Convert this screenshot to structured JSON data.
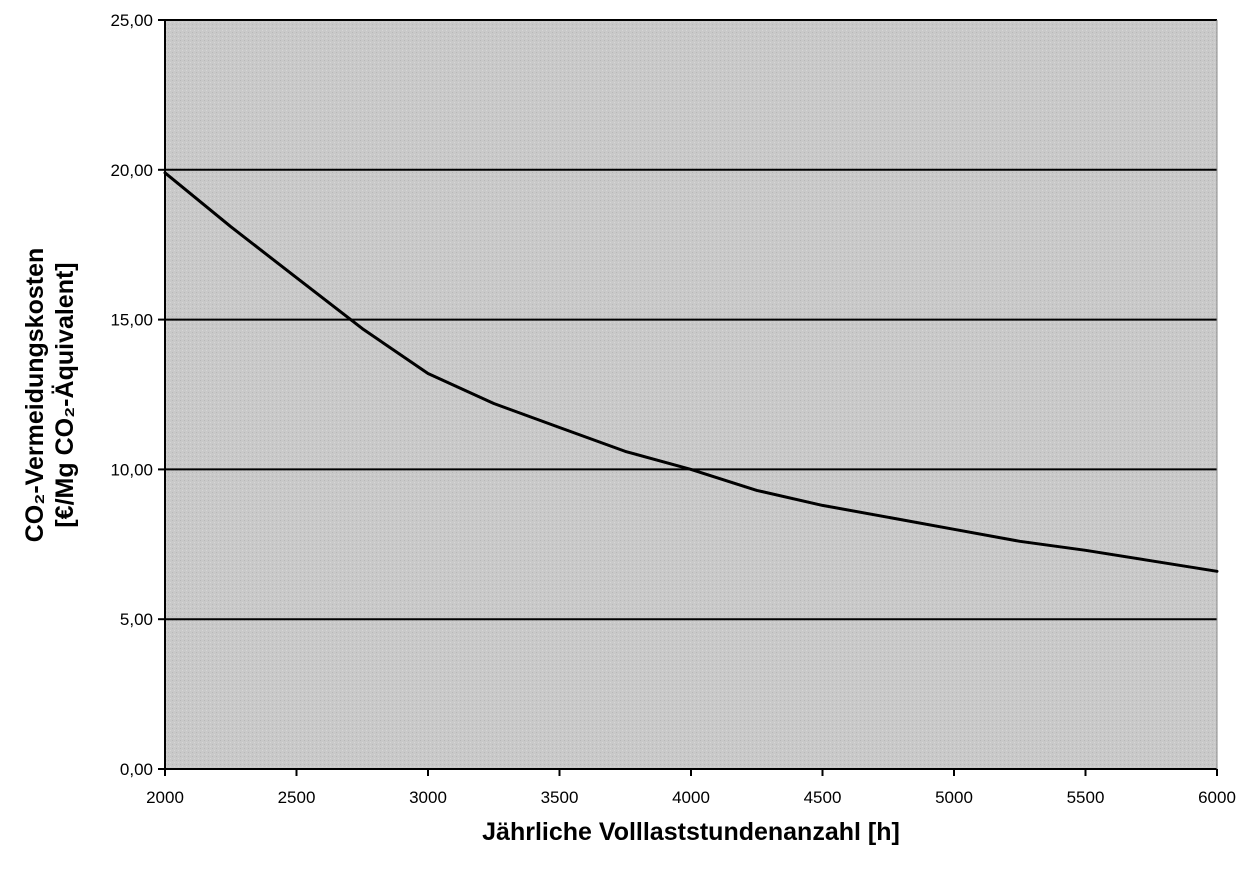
{
  "chart_data": {
    "type": "line",
    "title": "",
    "xlabel": "Jährliche Volllaststundenanzahl [h]",
    "ylabel_line1": "CO₂-Vermeidungskosten",
    "ylabel_line2": "[€/Mg CO₂-Äquivalent]",
    "xlim": [
      2000,
      6000
    ],
    "ylim": [
      0,
      25
    ],
    "x_ticks": [
      2000,
      2500,
      3000,
      3500,
      4000,
      4500,
      5000,
      5500,
      6000
    ],
    "y_ticks": [
      0,
      5,
      10,
      15,
      20,
      25
    ],
    "x_tick_labels": [
      "2000",
      "2500",
      "3000",
      "3500",
      "4000",
      "4500",
      "5000",
      "5500",
      "6000"
    ],
    "y_tick_labels": [
      "0,00",
      "5,00",
      "10,00",
      "15,00",
      "20,00",
      "25,00"
    ],
    "grid": "horizontal",
    "legend": "none",
    "colors": {
      "plot_background": "#c9c9c9",
      "line": "#000000",
      "gridline": "#000000"
    },
    "series": [
      {
        "x": [
          2000,
          2250,
          2500,
          2750,
          3000,
          3250,
          3500,
          3750,
          4000,
          4250,
          4500,
          4750,
          5000,
          5250,
          5500,
          5750,
          6000
        ],
        "values": [
          19.9,
          18.1,
          16.4,
          14.7,
          13.2,
          12.2,
          11.4,
          10.6,
          10.0,
          9.3,
          8.8,
          8.4,
          8.0,
          7.6,
          7.3,
          6.95,
          6.6
        ]
      }
    ]
  }
}
